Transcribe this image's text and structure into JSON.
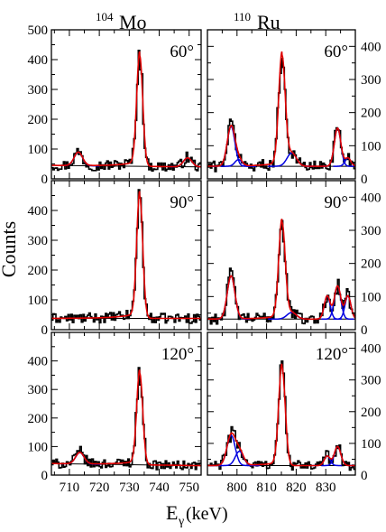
{
  "figure": {
    "nuclei": [
      {
        "mass": "104",
        "symbol": "Mo"
      },
      {
        "mass": "110",
        "symbol": "Ru"
      }
    ],
    "ylabel": "Counts",
    "xlabel_main": "E",
    "xlabel_sub": "γ",
    "xlabel_unit": "(keV)"
  },
  "chart_data": [
    {
      "type": "line",
      "nucleus": "104Mo",
      "angle": "60°",
      "xlim": [
        704,
        754
      ],
      "ylim": [
        0,
        500
      ],
      "yticks": [
        "0",
        "100",
        "200",
        "300",
        "400",
        "500"
      ],
      "peaks": [
        {
          "center": 733.5,
          "height": 370,
          "width": 1.0,
          "fit": "red"
        },
        {
          "center": 713.0,
          "height": 45,
          "width": 1.4,
          "fit": "blue"
        },
        {
          "center": 749.5,
          "height": 30,
          "width": 1.4,
          "fit": "blue"
        }
      ],
      "background": {
        "level": 40,
        "slope": 0.1,
        "tail": 1.0
      }
    },
    {
      "type": "line",
      "nucleus": "104Mo",
      "angle": "90°",
      "xlim": [
        704,
        754
      ],
      "ylim": [
        0,
        500
      ],
      "yticks": [
        "0",
        "100",
        "200",
        "300",
        "400"
      ],
      "peaks": [
        {
          "center": 733.5,
          "height": 410,
          "width": 1.0,
          "fit": "red"
        }
      ],
      "background": {
        "level": 38,
        "slope": 0.0,
        "tail": 1.0
      }
    },
    {
      "type": "line",
      "nucleus": "104Mo",
      "angle": "120°",
      "xlim": [
        704,
        754
      ],
      "ylim": [
        0,
        500
      ],
      "yticks": [
        "0",
        "100",
        "200",
        "300",
        "400"
      ],
      "peaks": [
        {
          "center": 733.5,
          "height": 320,
          "width": 1.0,
          "fit": "red"
        },
        {
          "center": 713.5,
          "height": 40,
          "width": 1.4,
          "fit": "blue"
        }
      ],
      "background": {
        "level": 33,
        "slope": 0.15,
        "tail": 1.0
      }
    },
    {
      "type": "line",
      "nucleus": "110Ru",
      "angle": "60°",
      "xlim": [
        790,
        840
      ],
      "ylim": [
        0,
        450
      ],
      "yticks": [
        "0",
        "100",
        "200",
        "300",
        "400"
      ],
      "peaks": [
        {
          "center": 815.2,
          "height": 330,
          "width": 1.1,
          "fit": "red"
        },
        {
          "center": 798.0,
          "height": 120,
          "width": 1.3,
          "fit": "blue"
        },
        {
          "center": 834.0,
          "height": 115,
          "width": 1.1,
          "fit": "blue"
        },
        {
          "center": 818.5,
          "height": 40,
          "width": 1.6,
          "fit": "blue"
        },
        {
          "center": 800.5,
          "height": 20,
          "width": 1.2,
          "fit": "blue"
        },
        {
          "center": 837.5,
          "height": 25,
          "width": 1.0,
          "fit": "blue"
        }
      ],
      "background": {
        "level": 38,
        "slope": 0.0,
        "tail": 0.8
      }
    },
    {
      "type": "line",
      "nucleus": "110Ru",
      "angle": "90°",
      "xlim": [
        790,
        840
      ],
      "ylim": [
        0,
        450
      ],
      "yticks": [
        "0",
        "100",
        "200",
        "300",
        "400"
      ],
      "peaks": [
        {
          "center": 815.2,
          "height": 290,
          "width": 1.1,
          "fit": "red"
        },
        {
          "center": 798.0,
          "height": 130,
          "width": 1.3,
          "fit": "blue"
        },
        {
          "center": 834.0,
          "height": 100,
          "width": 1.1,
          "fit": "blue"
        },
        {
          "center": 830.5,
          "height": 70,
          "width": 1.0,
          "fit": "blue"
        },
        {
          "center": 837.5,
          "height": 70,
          "width": 1.0,
          "fit": "blue"
        },
        {
          "center": 818.5,
          "height": 20,
          "width": 1.6,
          "fit": "blue"
        }
      ],
      "background": {
        "level": 32,
        "slope": 0.0,
        "tail": 0.8
      }
    },
    {
      "type": "line",
      "nucleus": "110Ru",
      "angle": "120°",
      "xlim": [
        790,
        840
      ],
      "ylim": [
        0,
        450
      ],
      "yticks": [
        "0",
        "100",
        "200",
        "300",
        "400"
      ],
      "peaks": [
        {
          "center": 815.2,
          "height": 310,
          "width": 1.1,
          "fit": "red"
        },
        {
          "center": 798.0,
          "height": 95,
          "width": 1.4,
          "fit": "blue"
        },
        {
          "center": 834.0,
          "height": 60,
          "width": 1.1,
          "fit": "blue"
        },
        {
          "center": 800.8,
          "height": 45,
          "width": 1.4,
          "fit": "blue"
        },
        {
          "center": 830.5,
          "height": 30,
          "width": 1.0,
          "fit": "blue"
        }
      ],
      "background": {
        "level": 30,
        "slope": 0.0,
        "tail": 0.8
      }
    }
  ],
  "xaxes": {
    "Mo": {
      "ticks": [
        710,
        720,
        730,
        740,
        750
      ],
      "minor": 5
    },
    "Ru": {
      "ticks": [
        800,
        810,
        820,
        830
      ],
      "minor": 5
    }
  },
  "colors": {
    "data": "#000000",
    "total_fit": "#e00000",
    "component_fit": "#0000e0",
    "background": "#000000"
  }
}
